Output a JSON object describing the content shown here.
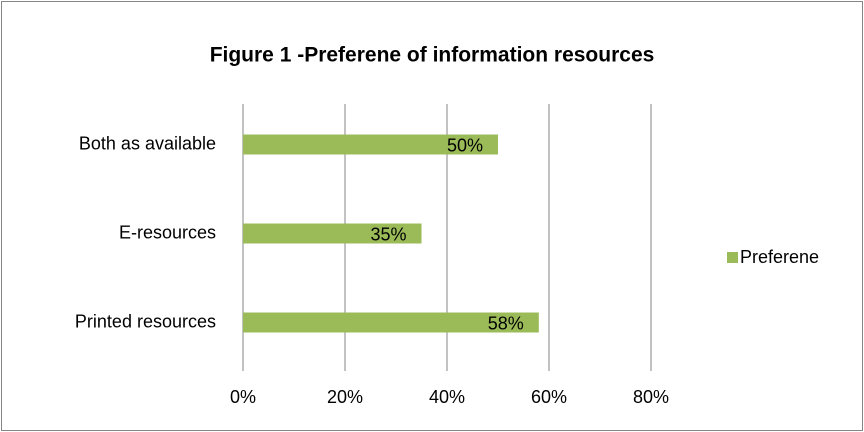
{
  "chart_data": {
    "type": "bar",
    "orientation": "horizontal",
    "title": "Figure 1 -Preferene of information resources",
    "categories": [
      "Both as available",
      "E-resources",
      "Printed resources"
    ],
    "series": [
      {
        "name": "Preferene",
        "color": "#9bbb59",
        "values": [
          50,
          35,
          58
        ],
        "value_labels": [
          "50%",
          "35%",
          "58%"
        ]
      }
    ],
    "xlim": [
      0,
      80
    ],
    "xticks": [
      {
        "value": 0,
        "label": "0%"
      },
      {
        "value": 20,
        "label": "20%"
      },
      {
        "value": 40,
        "label": "40%"
      },
      {
        "value": 60,
        "label": "60%"
      },
      {
        "value": 80,
        "label": "80%"
      }
    ],
    "grid": true,
    "legend": "right"
  }
}
